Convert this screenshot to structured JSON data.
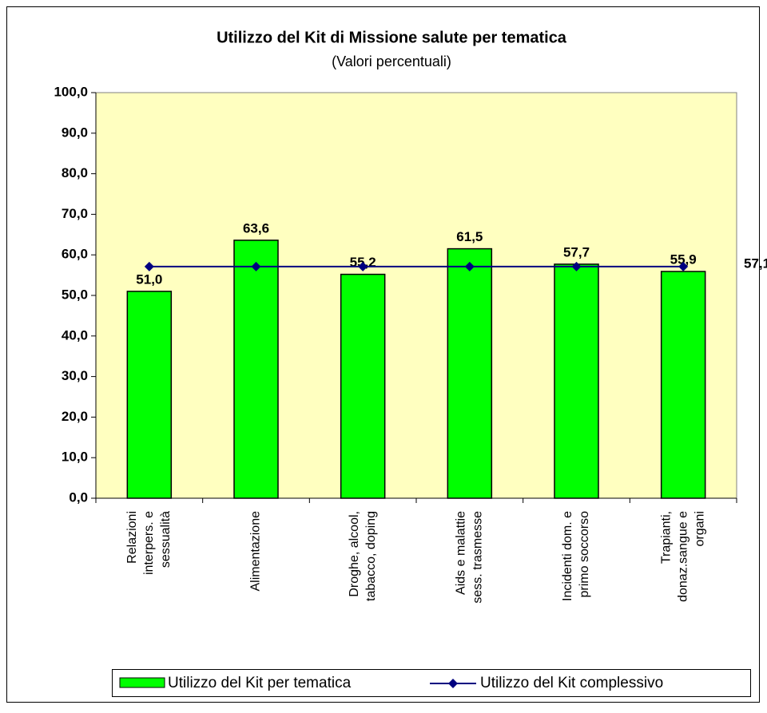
{
  "chart_data": {
    "type": "bar",
    "title": "Utilizzo del Kit di Missione salute per tematica",
    "subtitle": "(Valori percentuali)",
    "categories": [
      [
        "Relazioni",
        "interpers. e",
        "sessualità"
      ],
      [
        "Alimentazione"
      ],
      [
        "Droghe, alcool,",
        "tabacco, doping"
      ],
      [
        "Aids e malattie",
        "sess. trasmesse"
      ],
      [
        "Incidenti dom. e",
        "primo soccorso"
      ],
      [
        "Trapianti,",
        "donaz.sangue e",
        "organi"
      ]
    ],
    "series": [
      {
        "name": "Utilizzo del Kit per tematica",
        "type": "bar",
        "color": "#00ff00",
        "values": [
          51.0,
          63.6,
          55.2,
          61.5,
          57.7,
          55.9
        ],
        "value_labels": [
          "51,0",
          "63,6",
          "55,2",
          "61,5",
          "57,7",
          "55,9"
        ]
      },
      {
        "name": "Utilizzo del Kit complessivo",
        "type": "line",
        "color": "#000080",
        "values": [
          57.1,
          57.1,
          57.1,
          57.1,
          57.1,
          57.1
        ],
        "value_labels": [
          null,
          null,
          null,
          null,
          null,
          "57,1"
        ]
      }
    ],
    "ylim": [
      0,
      100
    ],
    "yticks": [
      {
        "value": 0,
        "label": "0,0"
      },
      {
        "value": 10,
        "label": "10,0"
      },
      {
        "value": 20,
        "label": "20,0"
      },
      {
        "value": 30,
        "label": "30,0"
      },
      {
        "value": 40,
        "label": "40,0"
      },
      {
        "value": 50,
        "label": "50,0"
      },
      {
        "value": 60,
        "label": "60,0"
      },
      {
        "value": 70,
        "label": "70,0"
      },
      {
        "value": 80,
        "label": "80,0"
      },
      {
        "value": 90,
        "label": "90,0"
      },
      {
        "value": 100,
        "label": "100,0"
      }
    ],
    "plot_background": "#ffffc0",
    "legend": "bottom"
  }
}
